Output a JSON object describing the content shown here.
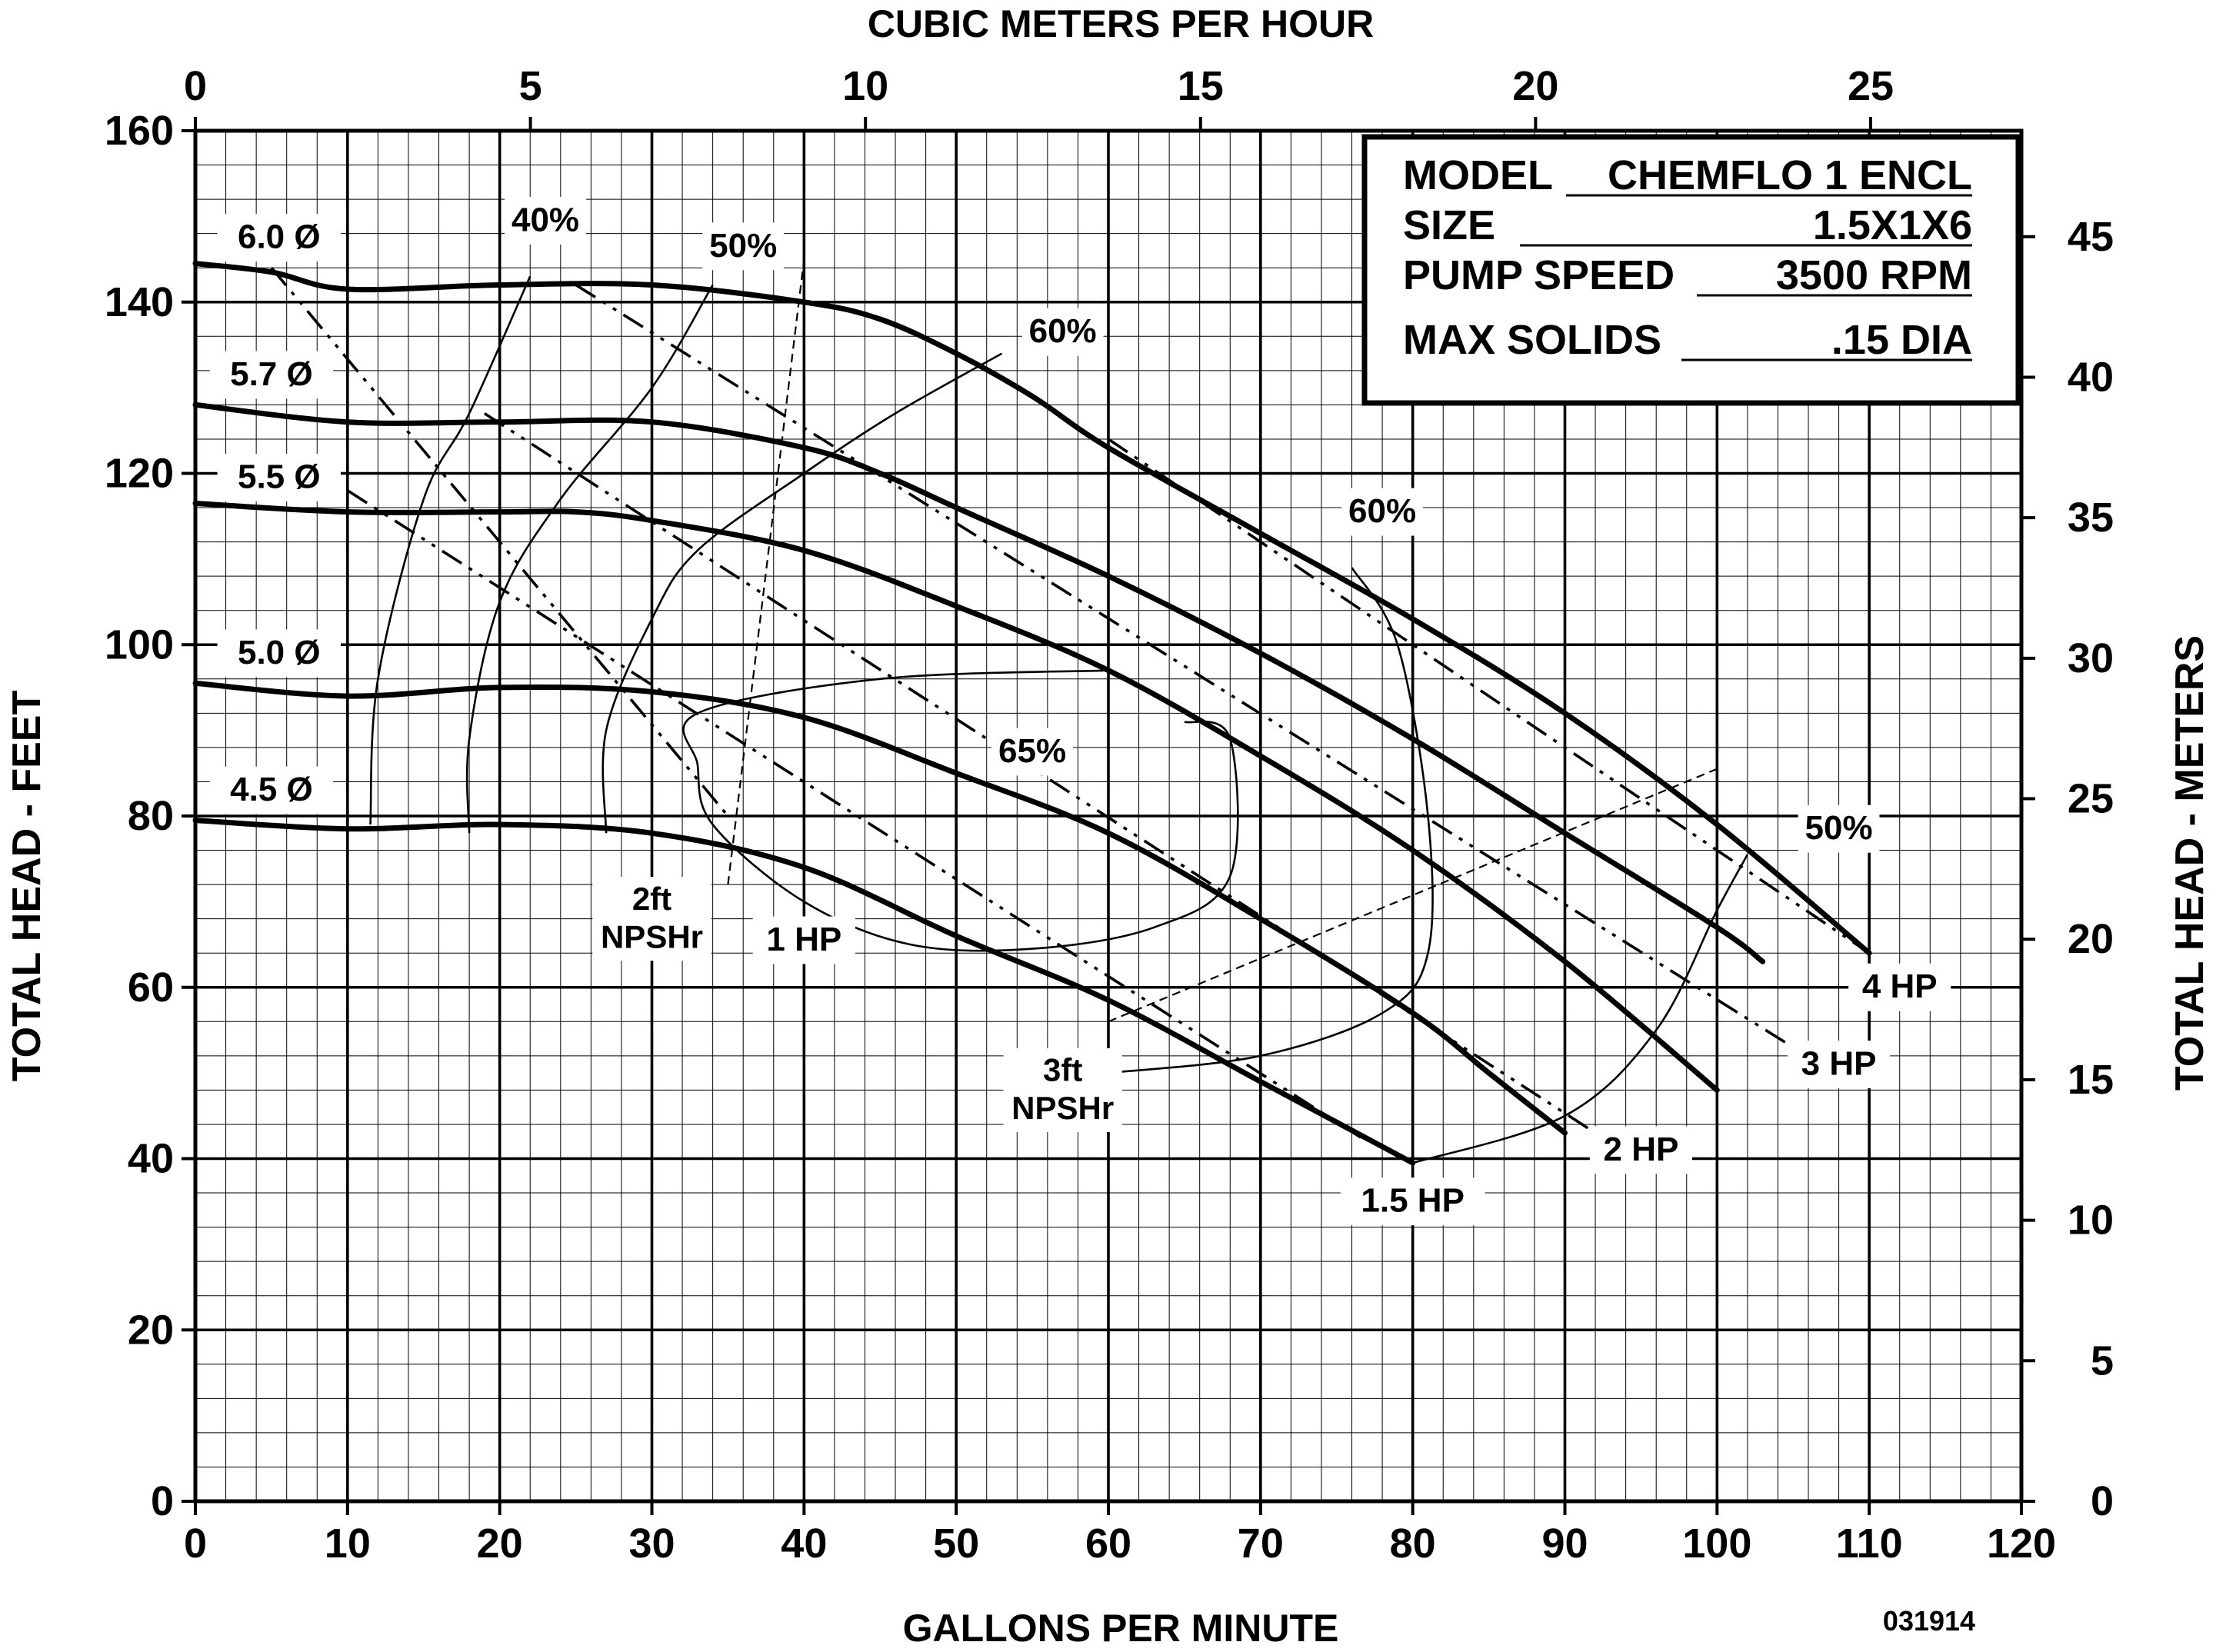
{
  "chart_data": {
    "type": "line",
    "title": "",
    "xlabel": "GALLONS PER MINUTE",
    "ylabel": "TOTAL HEAD - FEET",
    "x2label": "CUBIC METERS PER HOUR",
    "y2label": "TOTAL HEAD - METERS",
    "xlim": [
      0,
      120
    ],
    "ylim": [
      0,
      160
    ],
    "x2lim": [
      0,
      27.25
    ],
    "y2lim": [
      0,
      48.77
    ],
    "xticks": [
      "0",
      "10",
      "20",
      "30",
      "40",
      "50",
      "60",
      "70",
      "80",
      "90",
      "100",
      "110",
      "120"
    ],
    "yticks": [
      "0",
      "20",
      "40",
      "60",
      "80",
      "100",
      "120",
      "140",
      "160"
    ],
    "x2ticks": [
      "0",
      "5",
      "10",
      "15",
      "20",
      "25"
    ],
    "y2ticks": [
      "0",
      "5",
      "10",
      "15",
      "20",
      "25",
      "30",
      "35",
      "40",
      "45"
    ],
    "grid": true,
    "info_box": {
      "rows": [
        {
          "label": "MODEL",
          "value": "CHEMFLO 1 ENCL"
        },
        {
          "label": "SIZE",
          "value": "1.5X1X6"
        },
        {
          "label": "PUMP SPEED",
          "value": "3500 RPM"
        },
        {
          "label": "MAX SOLIDS",
          "value": ".15 DIA"
        }
      ]
    },
    "code": "031914",
    "head_curves": [
      {
        "name": "6.0 Ø",
        "points": [
          [
            0,
            144.5
          ],
          [
            5,
            143.5
          ],
          [
            10,
            141.5
          ],
          [
            20,
            142
          ],
          [
            30,
            142
          ],
          [
            40,
            140
          ],
          [
            45,
            138
          ],
          [
            50,
            134
          ],
          [
            55,
            129
          ],
          [
            60,
            123
          ],
          [
            70,
            113
          ],
          [
            80,
            103
          ],
          [
            90,
            92
          ],
          [
            100,
            79
          ],
          [
            110,
            64
          ]
        ]
      },
      {
        "name": "5.7 Ø",
        "points": [
          [
            0,
            128
          ],
          [
            10,
            126
          ],
          [
            20,
            126
          ],
          [
            30,
            126
          ],
          [
            40,
            123
          ],
          [
            45,
            120
          ],
          [
            50,
            116
          ],
          [
            60,
            108
          ],
          [
            70,
            99
          ],
          [
            80,
            89
          ],
          [
            90,
            78
          ],
          [
            100,
            67
          ],
          [
            103,
            63
          ]
        ]
      },
      {
        "name": "5.5 Ø",
        "points": [
          [
            0,
            116.5
          ],
          [
            10,
            115.5
          ],
          [
            20,
            115.5
          ],
          [
            25,
            115.5
          ],
          [
            30,
            114.5
          ],
          [
            40,
            111
          ],
          [
            50,
            104.5
          ],
          [
            60,
            97
          ],
          [
            70,
            87
          ],
          [
            80,
            76
          ],
          [
            90,
            63
          ],
          [
            100,
            48
          ]
        ]
      },
      {
        "name": "5.0 Ø",
        "points": [
          [
            0,
            95.5
          ],
          [
            10,
            94
          ],
          [
            20,
            95
          ],
          [
            30,
            94.5
          ],
          [
            40,
            91.5
          ],
          [
            50,
            85
          ],
          [
            60,
            78
          ],
          [
            70,
            68
          ],
          [
            80,
            57
          ],
          [
            85,
            50
          ],
          [
            90,
            43
          ]
        ]
      },
      {
        "name": "4.5 Ø",
        "points": [
          [
            0,
            79.5
          ],
          [
            10,
            78.5
          ],
          [
            20,
            79
          ],
          [
            30,
            78
          ],
          [
            40,
            74
          ],
          [
            50,
            66
          ],
          [
            60,
            58.5
          ],
          [
            70,
            49
          ],
          [
            80,
            39.5
          ]
        ]
      }
    ],
    "hp_lines": [
      {
        "name": "1 HP",
        "points": [
          [
            5,
            144
          ],
          [
            35,
            80
          ]
        ]
      },
      {
        "name": "1.5 HP",
        "points": [
          [
            10,
            118
          ],
          [
            77,
            42
          ]
        ]
      },
      {
        "name": "2 HP",
        "points": [
          [
            19,
            127
          ],
          [
            92,
            43
          ]
        ]
      },
      {
        "name": "3 HP",
        "points": [
          [
            25,
            142
          ],
          [
            105,
            53
          ]
        ]
      },
      {
        "name": "4 HP",
        "points": [
          [
            60,
            124
          ],
          [
            110,
            64
          ]
        ]
      }
    ],
    "hp_label_positions": [
      {
        "name": "1 HP",
        "x": 40,
        "y": 65.5
      },
      {
        "name": "1.5 HP",
        "x": 80,
        "y": 35
      },
      {
        "name": "2 HP",
        "x": 95,
        "y": 41
      },
      {
        "name": "3 HP",
        "x": 108,
        "y": 51
      },
      {
        "name": "4 HP",
        "x": 112,
        "y": 60
      }
    ],
    "efficiency_curves": [
      {
        "name": "40%",
        "points": [
          [
            11.5,
            79
          ],
          [
            12,
            96
          ],
          [
            15,
            117
          ],
          [
            18,
            127
          ],
          [
            22,
            143
          ]
        ]
      },
      {
        "name": "50%",
        "points": [
          [
            18,
            78
          ],
          [
            18,
            89
          ],
          [
            20,
            105
          ],
          [
            24,
            117
          ],
          [
            30,
            130
          ],
          [
            34,
            142
          ]
        ]
      },
      {
        "name": "60%",
        "points": [
          [
            27,
            78
          ],
          [
            27,
            90
          ],
          [
            30,
            103
          ],
          [
            33,
            111
          ],
          [
            40,
            120
          ],
          [
            46,
            127
          ],
          [
            53,
            134
          ]
        ]
      },
      {
        "name": "65%",
        "points": [
          [
            60,
            97
          ],
          [
            45,
            96
          ],
          [
            33,
            92
          ],
          [
            33,
            86
          ],
          [
            34,
            79
          ],
          [
            40,
            70
          ],
          [
            47,
            65
          ],
          [
            55,
            64.5
          ],
          [
            63,
            67
          ],
          [
            68,
            73
          ],
          [
            68,
            89
          ],
          [
            65,
            91
          ]
        ]
      },
      {
        "name": "60%",
        "points": [
          [
            60,
            50
          ],
          [
            70,
            52
          ],
          [
            78,
            57
          ],
          [
            81,
            64
          ],
          [
            81,
            80
          ],
          [
            79,
            100
          ],
          [
            76,
            109
          ]
        ]
      },
      {
        "name": "50%",
        "points": [
          [
            80,
            39.5
          ],
          [
            90,
            45
          ],
          [
            96,
            55
          ],
          [
            100,
            69
          ],
          [
            102,
            75.5
          ]
        ]
      }
    ],
    "efficiency_label_positions": [
      {
        "name": "40%",
        "x": 23,
        "y": 149.5
      },
      {
        "name": "50%",
        "x": 36,
        "y": 146.5
      },
      {
        "name": "60%",
        "x": 57,
        "y": 136.5
      },
      {
        "name": "60%",
        "x": 78,
        "y": 115.5
      },
      {
        "name": "65%",
        "x": 55,
        "y": 87.5
      },
      {
        "name": "50%",
        "x": 108,
        "y": 78.5
      }
    ],
    "npshr_lines": [
      {
        "name": "2ft NPSHr",
        "points": [
          [
            35,
            72
          ],
          [
            40,
            145
          ]
        ]
      },
      {
        "name": "3ft NPSHr",
        "points": [
          [
            60,
            56
          ],
          [
            100,
            85.5
          ]
        ]
      }
    ],
    "npshr_label_positions": [
      {
        "name": "2ft NPSHr",
        "x": 30,
        "y": 68
      },
      {
        "name": "3ft NPSHr",
        "x": 57,
        "y": 48
      }
    ],
    "diameter_label_positions": [
      {
        "name": "6.0 Ø",
        "x": 5.5,
        "y": 147.5
      },
      {
        "name": "5.7 Ø",
        "x": 5,
        "y": 131.5
      },
      {
        "name": "5.5 Ø",
        "x": 5.5,
        "y": 119.5
      },
      {
        "name": "5.0 Ø",
        "x": 5.5,
        "y": 99
      },
      {
        "name": "4.5 Ø",
        "x": 5,
        "y": 83
      }
    ]
  }
}
